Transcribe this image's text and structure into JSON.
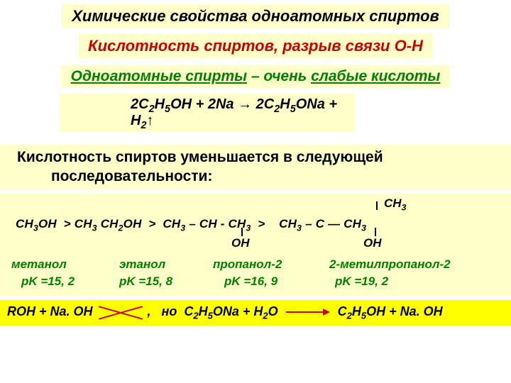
{
  "title": "Химические свойства одноатомных спиртов",
  "subtitle": "Кислотность спиртов, разрыв связи О-Н",
  "statement": {
    "part1": "Одноатомные спирты",
    "part2": " – очень ",
    "part3": "слабые кислоты"
  },
  "equation1_html": "2C<sub>2</sub>H<sub>5</sub>OH + 2Na → 2C<sub>2</sub>H<sub>5</sub>ONa + H<sub>2</sub>↑",
  "body": {
    "line1": "Кислотность спиртов уменьшается в следующей",
    "line2": "последовательности:"
  },
  "structures": {
    "top_ch3_html": "CH<sub>3</sub>",
    "main_html": "CH<sub>3</sub>OH&nbsp; &gt; CH<sub>3</sub> CH<sub>2</sub>OH&nbsp; &gt;&nbsp; CH<sub>3</sub> – CH - CH<sub>3</sub>&nbsp; &gt;&nbsp;&nbsp;&nbsp; CH<sub>3</sub> – C — CH<sub>3</sub>",
    "oh": "OH"
  },
  "names": {
    "c1": "метанол",
    "pk1": "pK =15, 2",
    "c2": "этанол",
    "pk2": "pK =15, 8",
    "c3": "пропанол-2",
    "pk3": "pK =16, 9",
    "c4": "2-метилпропанол-2",
    "pk4": "pK =19, 2"
  },
  "final": {
    "left": "ROH + Na. OH",
    "mid_html": ",&nbsp;&nbsp; но&nbsp; C<sub>2</sub>H<sub>5</sub>ONa + H<sub>2</sub>O",
    "right_html": "C<sub>2</sub>H<sub>5</sub>OH + Na. OH"
  },
  "colors": {
    "bg_highlight": "#ffffca",
    "bg_strong": "#ffff00",
    "title_color": "#000000",
    "red": "#cc0000",
    "green": "#008000"
  },
  "fonts": {
    "title_pt": 22,
    "subtitle_pt": 22,
    "body_pt": 21,
    "formula_pt": 20,
    "small_pt": 17
  }
}
